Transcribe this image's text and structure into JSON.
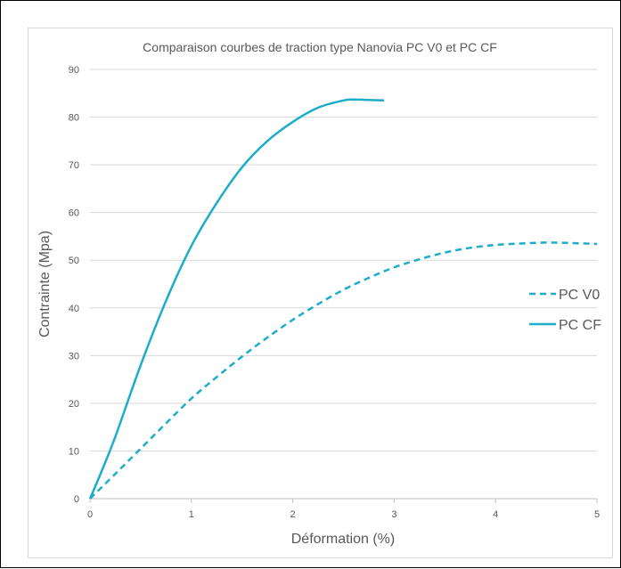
{
  "chart_data": {
    "type": "line",
    "title": "Comparaison courbes de traction type Nanovia PC V0 et PC CF",
    "xlabel": "Déformation (%)",
    "ylabel": "Contrainte (Mpa)",
    "xlim": [
      0,
      5
    ],
    "ylim": [
      0,
      90
    ],
    "xticks": [
      "0",
      "1",
      "2",
      "3",
      "4",
      "5"
    ],
    "yticks": [
      "0",
      "10",
      "20",
      "30",
      "40",
      "50",
      "60",
      "70",
      "80",
      "90"
    ],
    "grid": true,
    "legend_position": "right",
    "series": [
      {
        "name": "PC V0",
        "style": "dashed",
        "color": "#1CADC8",
        "x": [
          0,
          0.25,
          0.5,
          0.75,
          1.0,
          1.25,
          1.5,
          1.75,
          2.0,
          2.25,
          2.5,
          2.75,
          3.0,
          3.25,
          3.5,
          3.75,
          4.0,
          4.25,
          4.5,
          4.75,
          5.0
        ],
        "y": [
          0,
          5.2,
          10.5,
          15.8,
          21.0,
          25.5,
          29.8,
          33.8,
          37.5,
          40.8,
          43.8,
          46.3,
          48.5,
          50.2,
          51.6,
          52.6,
          53.2,
          53.5,
          53.7,
          53.6,
          53.4
        ]
      },
      {
        "name": "PC CF",
        "style": "solid",
        "color": "#1CADC8",
        "x": [
          0,
          0.1,
          0.25,
          0.5,
          0.75,
          1.0,
          1.25,
          1.5,
          1.75,
          2.0,
          2.25,
          2.5,
          2.6,
          2.75,
          2.9
        ],
        "y": [
          0,
          5,
          13,
          28,
          41.5,
          53,
          62,
          69.5,
          75,
          79,
          82,
          83.5,
          83.7,
          83.6,
          83.5
        ]
      }
    ]
  }
}
